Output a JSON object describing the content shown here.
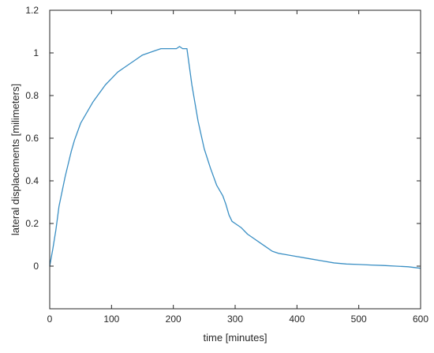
{
  "chart_data": {
    "type": "line",
    "xlabel": "time [minutes]",
    "ylabel": "lateral displacements [milimeters]",
    "xlim": [
      0,
      600
    ],
    "ylim": [
      -0.2,
      1.2
    ],
    "xticks": [
      0,
      100,
      200,
      300,
      400,
      500,
      600
    ],
    "yticks": [
      0,
      0.2,
      0.4,
      0.6,
      0.8,
      1,
      1.2
    ],
    "xtick_labels": [
      "0",
      "100",
      "200",
      "300",
      "400",
      "500",
      "600"
    ],
    "ytick_labels": [
      "0",
      "0.2",
      "0.4",
      "0.6",
      "0.8",
      "1",
      "1.2"
    ],
    "grid": false,
    "line_color": "#3a8fc4",
    "series": [
      {
        "x": [
          0,
          5,
          10,
          15,
          20,
          25,
          30,
          35,
          40,
          45,
          50,
          60,
          70,
          80,
          90,
          100,
          110,
          120,
          130,
          140,
          150,
          160,
          170,
          180,
          190,
          200,
          205,
          210,
          215,
          222,
          230,
          240,
          250,
          260,
          270,
          280,
          285,
          290,
          295,
          300,
          310,
          320,
          330,
          340,
          350,
          360,
          370,
          380,
          400,
          420,
          440,
          460,
          480,
          500,
          520,
          540,
          560,
          580,
          600
        ],
        "y": [
          0,
          0.08,
          0.17,
          0.28,
          0.35,
          0.42,
          0.48,
          0.54,
          0.59,
          0.63,
          0.67,
          0.72,
          0.77,
          0.81,
          0.85,
          0.88,
          0.91,
          0.93,
          0.95,
          0.97,
          0.99,
          1.0,
          1.01,
          1.02,
          1.02,
          1.02,
          1.02,
          1.03,
          1.02,
          1.02,
          0.85,
          0.68,
          0.55,
          0.46,
          0.38,
          0.33,
          0.29,
          0.24,
          0.21,
          0.2,
          0.18,
          0.15,
          0.13,
          0.11,
          0.09,
          0.07,
          0.06,
          0.055,
          0.045,
          0.035,
          0.025,
          0.015,
          0.01,
          0.008,
          0.005,
          0.003,
          0.0,
          -0.003,
          -0.01
        ]
      }
    ]
  }
}
